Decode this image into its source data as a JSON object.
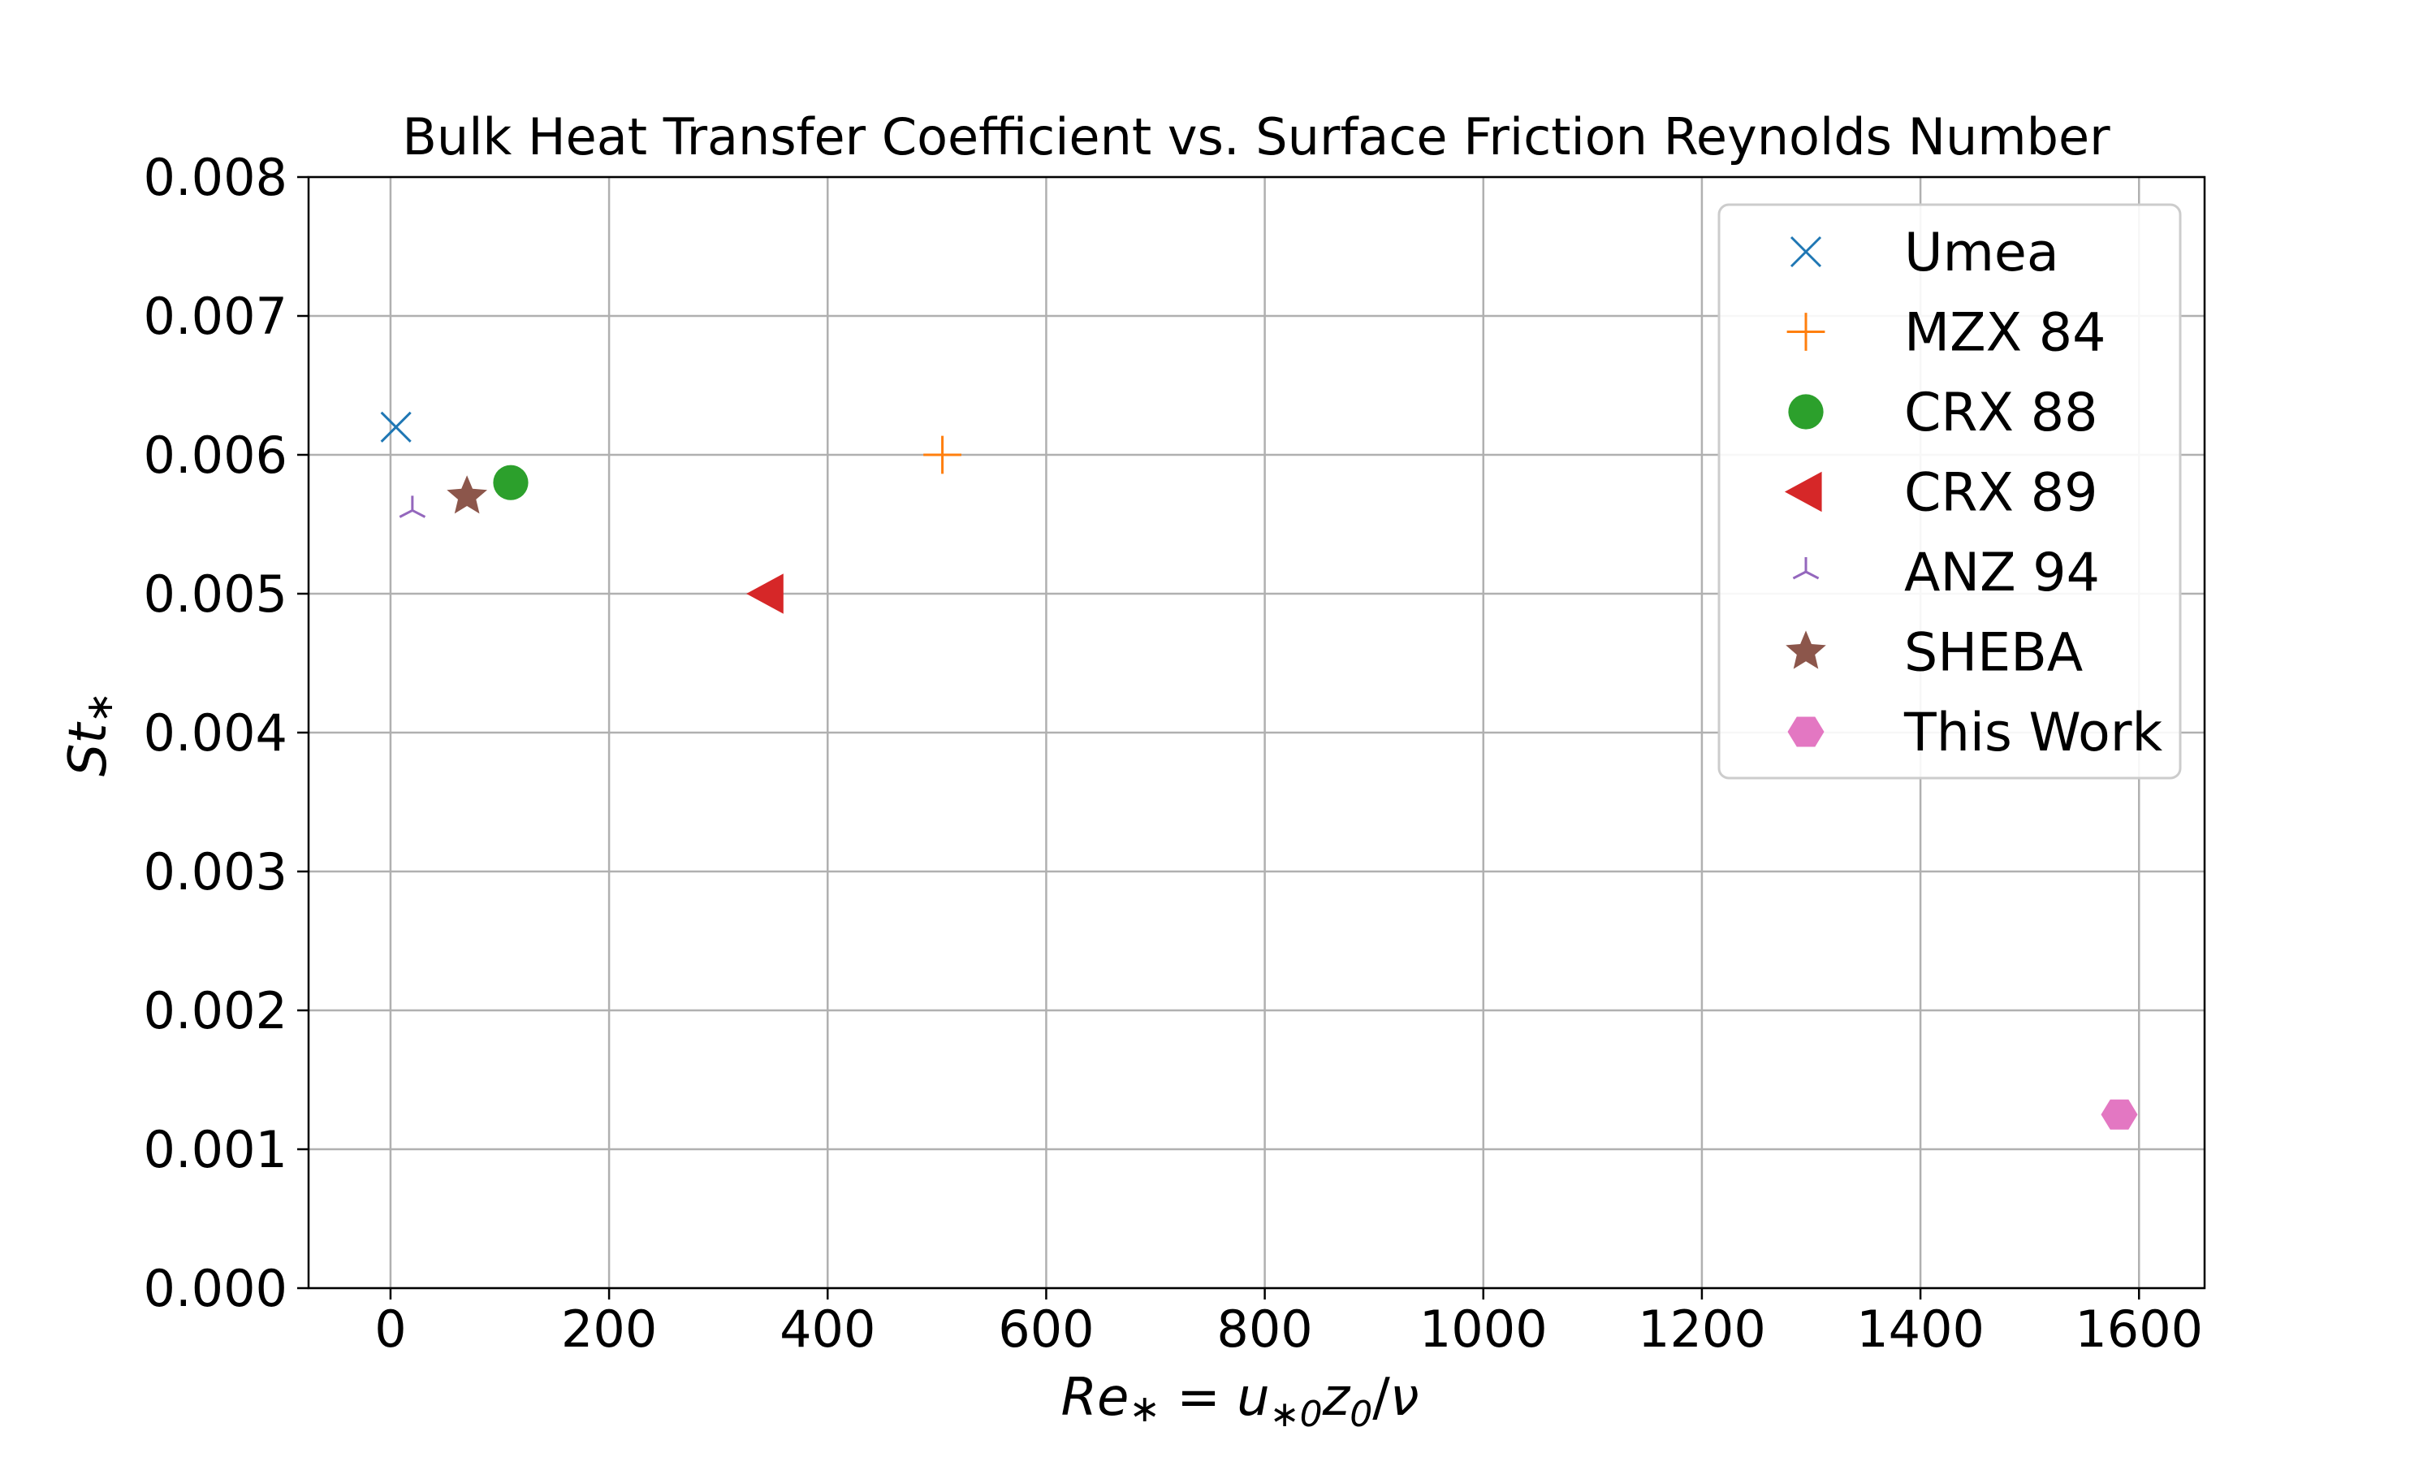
{
  "chart_data": {
    "type": "scatter",
    "title": "Bulk Heat Transfer Coefficient vs. Surface Friction Reynolds Number",
    "xlabel": "Re* = u*0z0/ν",
    "ylabel": "St*",
    "xlim": [
      -75,
      1660
    ],
    "ylim": [
      0.0,
      0.008
    ],
    "xticks": [
      0,
      200,
      400,
      600,
      800,
      1000,
      1200,
      1400,
      1600
    ],
    "yticks": [
      0.0,
      0.001,
      0.002,
      0.003,
      0.004,
      0.005,
      0.006,
      0.007,
      0.008
    ],
    "xtick_labels": [
      "0",
      "200",
      "400",
      "600",
      "800",
      "1000",
      "1200",
      "1400",
      "1600"
    ],
    "ytick_labels": [
      "0.000",
      "0.001",
      "0.002",
      "0.003",
      "0.004",
      "0.005",
      "0.006",
      "0.007",
      "0.008"
    ],
    "grid": true,
    "legend_position": "top-right",
    "series": [
      {
        "name": "Umea",
        "marker": "x",
        "color": "#1f77b4",
        "points": [
          [
            5,
            0.0062
          ]
        ]
      },
      {
        "name": "MZX 84",
        "marker": "plus",
        "color": "#ff7f0e",
        "points": [
          [
            505,
            0.006
          ]
        ]
      },
      {
        "name": "CRX 88",
        "marker": "circle",
        "color": "#2ca02c",
        "points": [
          [
            110,
            0.0058
          ]
        ]
      },
      {
        "name": "CRX 89",
        "marker": "triangle-left",
        "color": "#d62728",
        "points": [
          [
            345,
            0.005
          ]
        ]
      },
      {
        "name": "ANZ 94",
        "marker": "tri-up",
        "color": "#9467bd",
        "points": [
          [
            20,
            0.0056
          ]
        ]
      },
      {
        "name": "SHEBA",
        "marker": "star",
        "color": "#8c564b",
        "points": [
          [
            70,
            0.0057
          ]
        ]
      },
      {
        "name": "This Work",
        "marker": "hexagon",
        "color": "#e377c2",
        "points": [
          [
            1582,
            0.00125
          ]
        ]
      }
    ]
  }
}
